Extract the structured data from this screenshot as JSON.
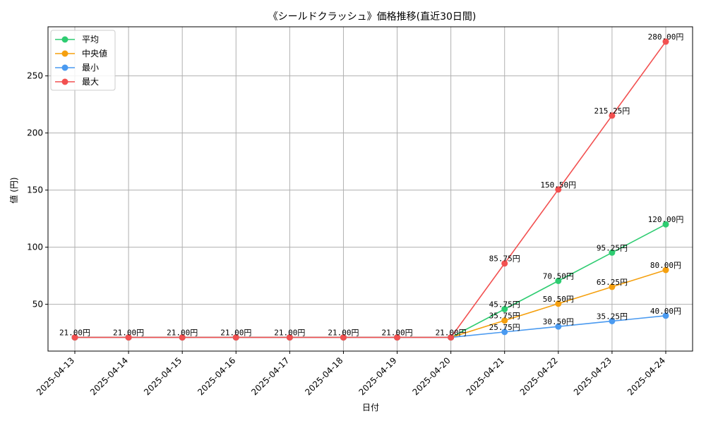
{
  "chart_data": {
    "type": "line",
    "title": "《シールドクラッシュ》価格推移(直近30日間)",
    "xlabel": "日付",
    "ylabel": "値 (円)",
    "categories": [
      "2025-04-13",
      "2025-04-14",
      "2025-04-15",
      "2025-04-16",
      "2025-04-17",
      "2025-04-18",
      "2025-04-19",
      "2025-04-20",
      "2025-04-21",
      "2025-04-22",
      "2025-04-23",
      "2025-04-24"
    ],
    "ylim": [
      9,
      293
    ],
    "yticks": [
      50,
      100,
      150,
      200,
      250
    ],
    "grid": true,
    "legend_position": "top-left",
    "value_suffix": "円",
    "series": [
      {
        "name": "平均",
        "color": "#2ecc71",
        "values": [
          21,
          21,
          21,
          21,
          21,
          21,
          21,
          21,
          45.75,
          70.5,
          95.25,
          120
        ],
        "labels": [
          "",
          "",
          "",
          "",
          "",
          "",
          "",
          "",
          "45.75円",
          "70.50円",
          "95.25円",
          "120.00円"
        ]
      },
      {
        "name": "中央値",
        "color": "#f5a00f",
        "values": [
          21,
          21,
          21,
          21,
          21,
          21,
          21,
          21,
          35.75,
          50.5,
          65.25,
          80
        ],
        "labels": [
          "",
          "",
          "",
          "",
          "",
          "",
          "",
          "",
          "35.75円",
          "50.50円",
          "65.25円",
          "80.00円"
        ]
      },
      {
        "name": "最小",
        "color": "#4a9af0",
        "values": [
          21,
          21,
          21,
          21,
          21,
          21,
          21,
          21,
          25.75,
          30.5,
          35.25,
          40
        ],
        "labels": [
          "",
          "",
          "",
          "",
          "",
          "",
          "",
          "",
          "25.75円",
          "30.50円",
          "35.25円",
          "40.00円"
        ]
      },
      {
        "name": "最大",
        "color": "#f25050",
        "values": [
          21,
          21,
          21,
          21,
          21,
          21,
          21,
          21,
          85.75,
          150.5,
          215.25,
          280
        ],
        "labels": [
          "21.00円",
          "21.00円",
          "21.00円",
          "21.00円",
          "21.00円",
          "21.00円",
          "21.00円",
          "21.00円",
          "85.75円",
          "150.50円",
          "215.25円",
          "280.00円"
        ]
      }
    ]
  }
}
